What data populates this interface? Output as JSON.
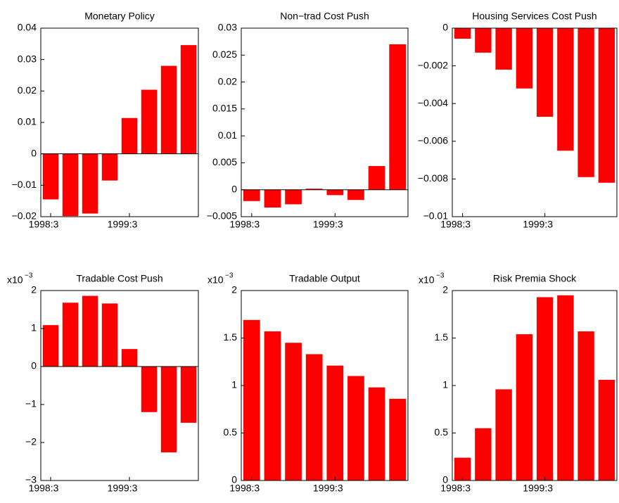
{
  "chart_data": [
    {
      "type": "bar",
      "title": "Monetary Policy",
      "categories": [
        "1998:3",
        null,
        null,
        null,
        "1999:3",
        null,
        null,
        null
      ],
      "values": [
        -0.0145,
        -0.0198,
        -0.019,
        -0.0085,
        0.0114,
        0.0204,
        0.028,
        0.0346
      ],
      "color": "#ff0000",
      "ylim": [
        -0.02,
        0.04
      ],
      "yticks": [
        {
          "value": -0.02,
          "label": "−0.02"
        },
        {
          "value": -0.01,
          "label": "−0.01"
        },
        0,
        0.01,
        0.02,
        0.03,
        0.04
      ]
    },
    {
      "type": "bar",
      "title": "Non−trad Cost Push",
      "categories": [
        "1998:3",
        null,
        null,
        null,
        "1999:3",
        null,
        null,
        null
      ],
      "values": [
        -0.0021,
        -0.0033,
        -0.0027,
        0.0002,
        -0.001,
        -0.0019,
        0.0044,
        0.027
      ],
      "color": "#ff0000",
      "ylim": [
        -0.005,
        0.03
      ],
      "yticks": [
        {
          "value": -0.005,
          "label": "−0.005"
        },
        0,
        0.005,
        0.01,
        0.015,
        0.02,
        0.025,
        0.03
      ]
    },
    {
      "type": "bar",
      "title": "Housing Services Cost Push",
      "categories": [
        "1998:3",
        null,
        null,
        null,
        "1999:3",
        null,
        null,
        null
      ],
      "values": [
        -0.00056,
        -0.0013,
        -0.0022,
        -0.0032,
        -0.0047,
        -0.0065,
        -0.0079,
        -0.0082
      ],
      "color": "#ff0000",
      "ylim": [
        -0.01,
        0
      ],
      "yticks": [
        {
          "value": -0.01,
          "label": "−0.01"
        },
        {
          "value": -0.008,
          "label": "−0.008"
        },
        {
          "value": -0.006,
          "label": "−0.006"
        },
        {
          "value": -0.004,
          "label": "−0.004"
        },
        {
          "value": -0.002,
          "label": "−0.002"
        },
        0
      ]
    },
    {
      "type": "bar",
      "title": "Tradable Cost Push",
      "y_multiplier": {
        "base": "x10",
        "exponent": "−3"
      },
      "categories": [
        "1998:3",
        null,
        null,
        null,
        "1999:3",
        null,
        null,
        null
      ],
      "values": [
        1.09,
        1.68,
        1.86,
        1.66,
        0.46,
        -1.2,
        -2.26,
        -1.48
      ],
      "color": "#ff0000",
      "ylim": [
        -3,
        2
      ],
      "yticks": [
        {
          "value": -3,
          "label": "−3"
        },
        {
          "value": -2,
          "label": "−2"
        },
        {
          "value": -1,
          "label": "−1"
        },
        0,
        1,
        2
      ]
    },
    {
      "type": "bar",
      "title": "Tradable Output",
      "y_multiplier": {
        "base": "x10",
        "exponent": "−3"
      },
      "categories": [
        "1998:3",
        null,
        null,
        null,
        "1999:3",
        null,
        null,
        null
      ],
      "values": [
        1.69,
        1.57,
        1.45,
        1.33,
        1.21,
        1.1,
        0.98,
        0.86
      ],
      "color": "#ff0000",
      "ylim": [
        0,
        2
      ],
      "yticks": [
        0,
        0.5,
        1,
        1.5,
        2
      ]
    },
    {
      "type": "bar",
      "title": "Risk Premia Shock",
      "y_multiplier": {
        "base": "x10",
        "exponent": "−3"
      },
      "categories": [
        "1998:3",
        null,
        null,
        null,
        "1999:3",
        null,
        null,
        null
      ],
      "values": [
        0.24,
        0.55,
        0.96,
        1.54,
        1.93,
        1.95,
        1.57,
        1.06
      ],
      "color": "#ff0000",
      "ylim": [
        0,
        2
      ],
      "yticks": [
        0,
        0.5,
        1,
        1.5,
        2
      ]
    }
  ]
}
